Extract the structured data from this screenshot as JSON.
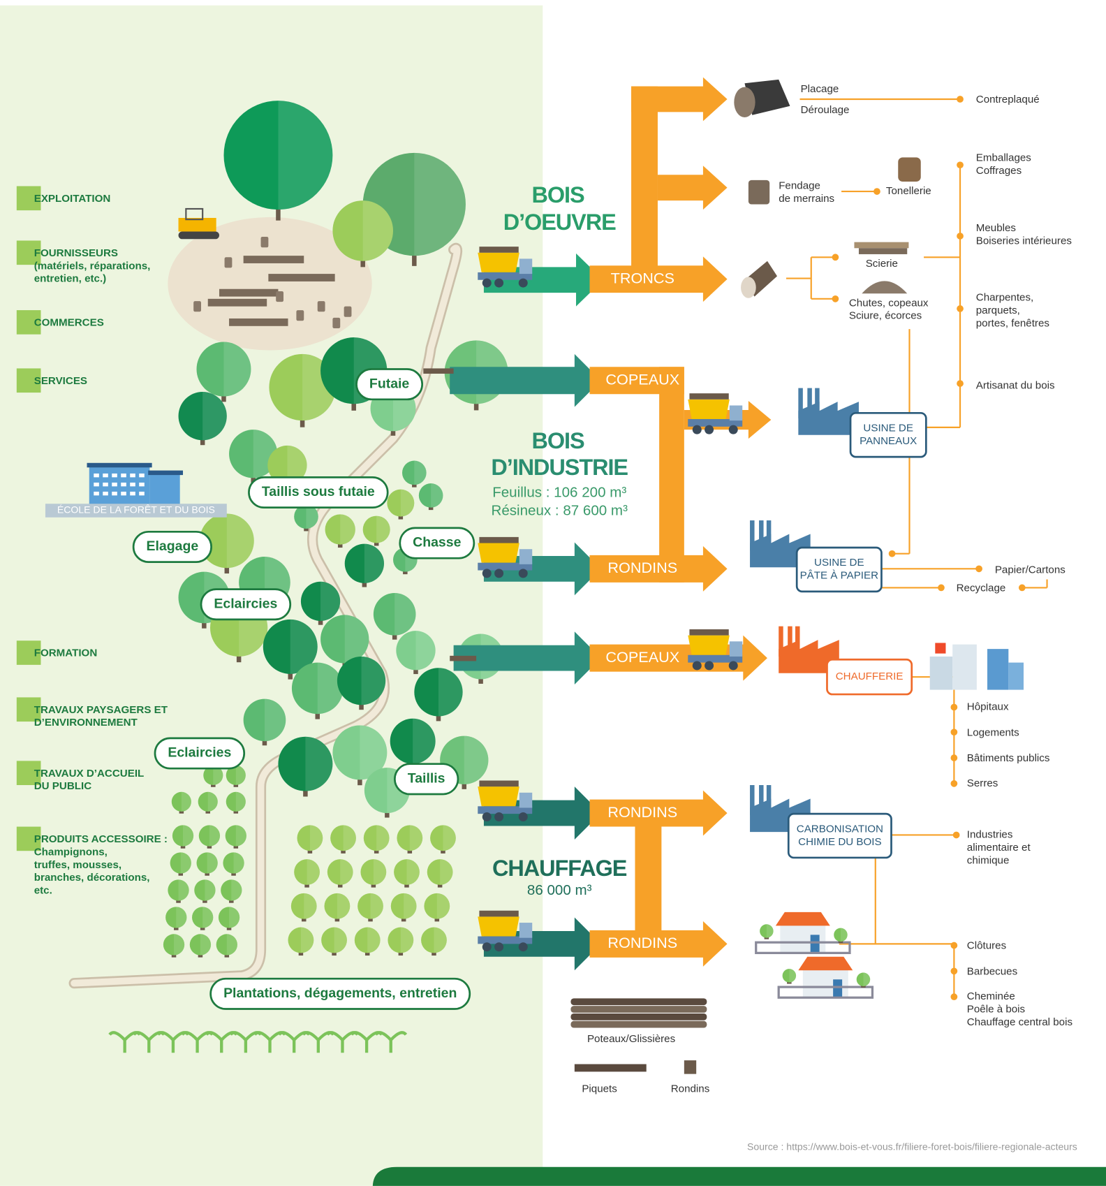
{
  "sectors": [
    [
      "EXPLOITATION"
    ],
    [
      "FOURNISSEURS",
      "(matériels, réparations,",
      "entretien, etc.)"
    ],
    [
      "COMMERCES"
    ],
    [
      "SERVICES"
    ],
    [
      "FORMATION"
    ],
    [
      "TRAVAUX PAYSAGERS ET",
      "D’ENVIRONNEMENT"
    ],
    [
      "TRAVAUX D’ACCUEIL",
      "DU PUBLIC"
    ],
    [
      "PRODUITS ACCESSOIRE :",
      "Champignons,",
      "truffes, mousses,",
      "branches, décorations,",
      "etc."
    ]
  ],
  "school": "ÉCOLE DE LA FORÊT ET DU BOIS",
  "forest_labels": [
    "Futaie",
    "Taillis sous futaie",
    "Chasse",
    "Elagage",
    "Eclaircies",
    "Eclaircies",
    "Taillis",
    "Plantations, dégagements, entretien"
  ],
  "sections": [
    {
      "title": [
        "BOIS",
        "D’OEUVRE"
      ]
    },
    {
      "title": [
        "BOIS",
        "D’INDUSTRIE"
      ],
      "volumes": [
        "Feuillus : 106 200 m³",
        "Résineux : 87 600 m³"
      ]
    },
    {
      "title": [
        "CHAUFFAGE"
      ],
      "volumes": [
        "86 000 m³"
      ]
    }
  ],
  "flows": [
    "TRONCS",
    "COPEAUX",
    "RONDINS",
    "COPEAUX",
    "RONDINS",
    "RONDINS"
  ],
  "outputs": [
    [
      "Placage"
    ],
    [
      "Déroulage"
    ],
    [
      "Contreplaqué"
    ],
    [
      "Fendage",
      "de merrains"
    ],
    [
      "Tonellerie"
    ],
    [
      "Scierie"
    ],
    [
      "Chutes, copeaux",
      "Sciure, écorces"
    ],
    [
      "Emballages",
      "Coffrages"
    ],
    [
      "Meubles",
      "Boiseries intérieures"
    ],
    [
      "Charpentes,",
      "parquets,",
      "portes, fenêtres"
    ],
    [
      "Artisanat du bois"
    ],
    [
      "Papier/Cartons"
    ],
    [
      "Recyclage"
    ],
    [
      "Hôpitaux"
    ],
    [
      "Logements"
    ],
    [
      "Bâtiments publics"
    ],
    [
      "Serres"
    ],
    [
      "Industries",
      "alimentaire et",
      "chimique"
    ],
    [
      "Clôtures"
    ],
    [
      "Barbecues"
    ],
    [
      "Cheminée",
      "Poêle à bois",
      "Chauffage central bois"
    ]
  ],
  "facilities": [
    [
      "USINE DE",
      "PANNEAUX"
    ],
    [
      "USINE DE",
      "PÂTE À PAPIER"
    ],
    [
      "CHAUFFERIE"
    ],
    [
      "CARBONISATION",
      "CHIMIE DU BOIS"
    ]
  ],
  "wood_products": [
    "Poteaux/Glissières",
    "Piquets",
    "Rondins"
  ],
  "source": "Source : https://www.bois-et-vous.fr/filiere-foret-bois/filiere-regionale-acteurs"
}
